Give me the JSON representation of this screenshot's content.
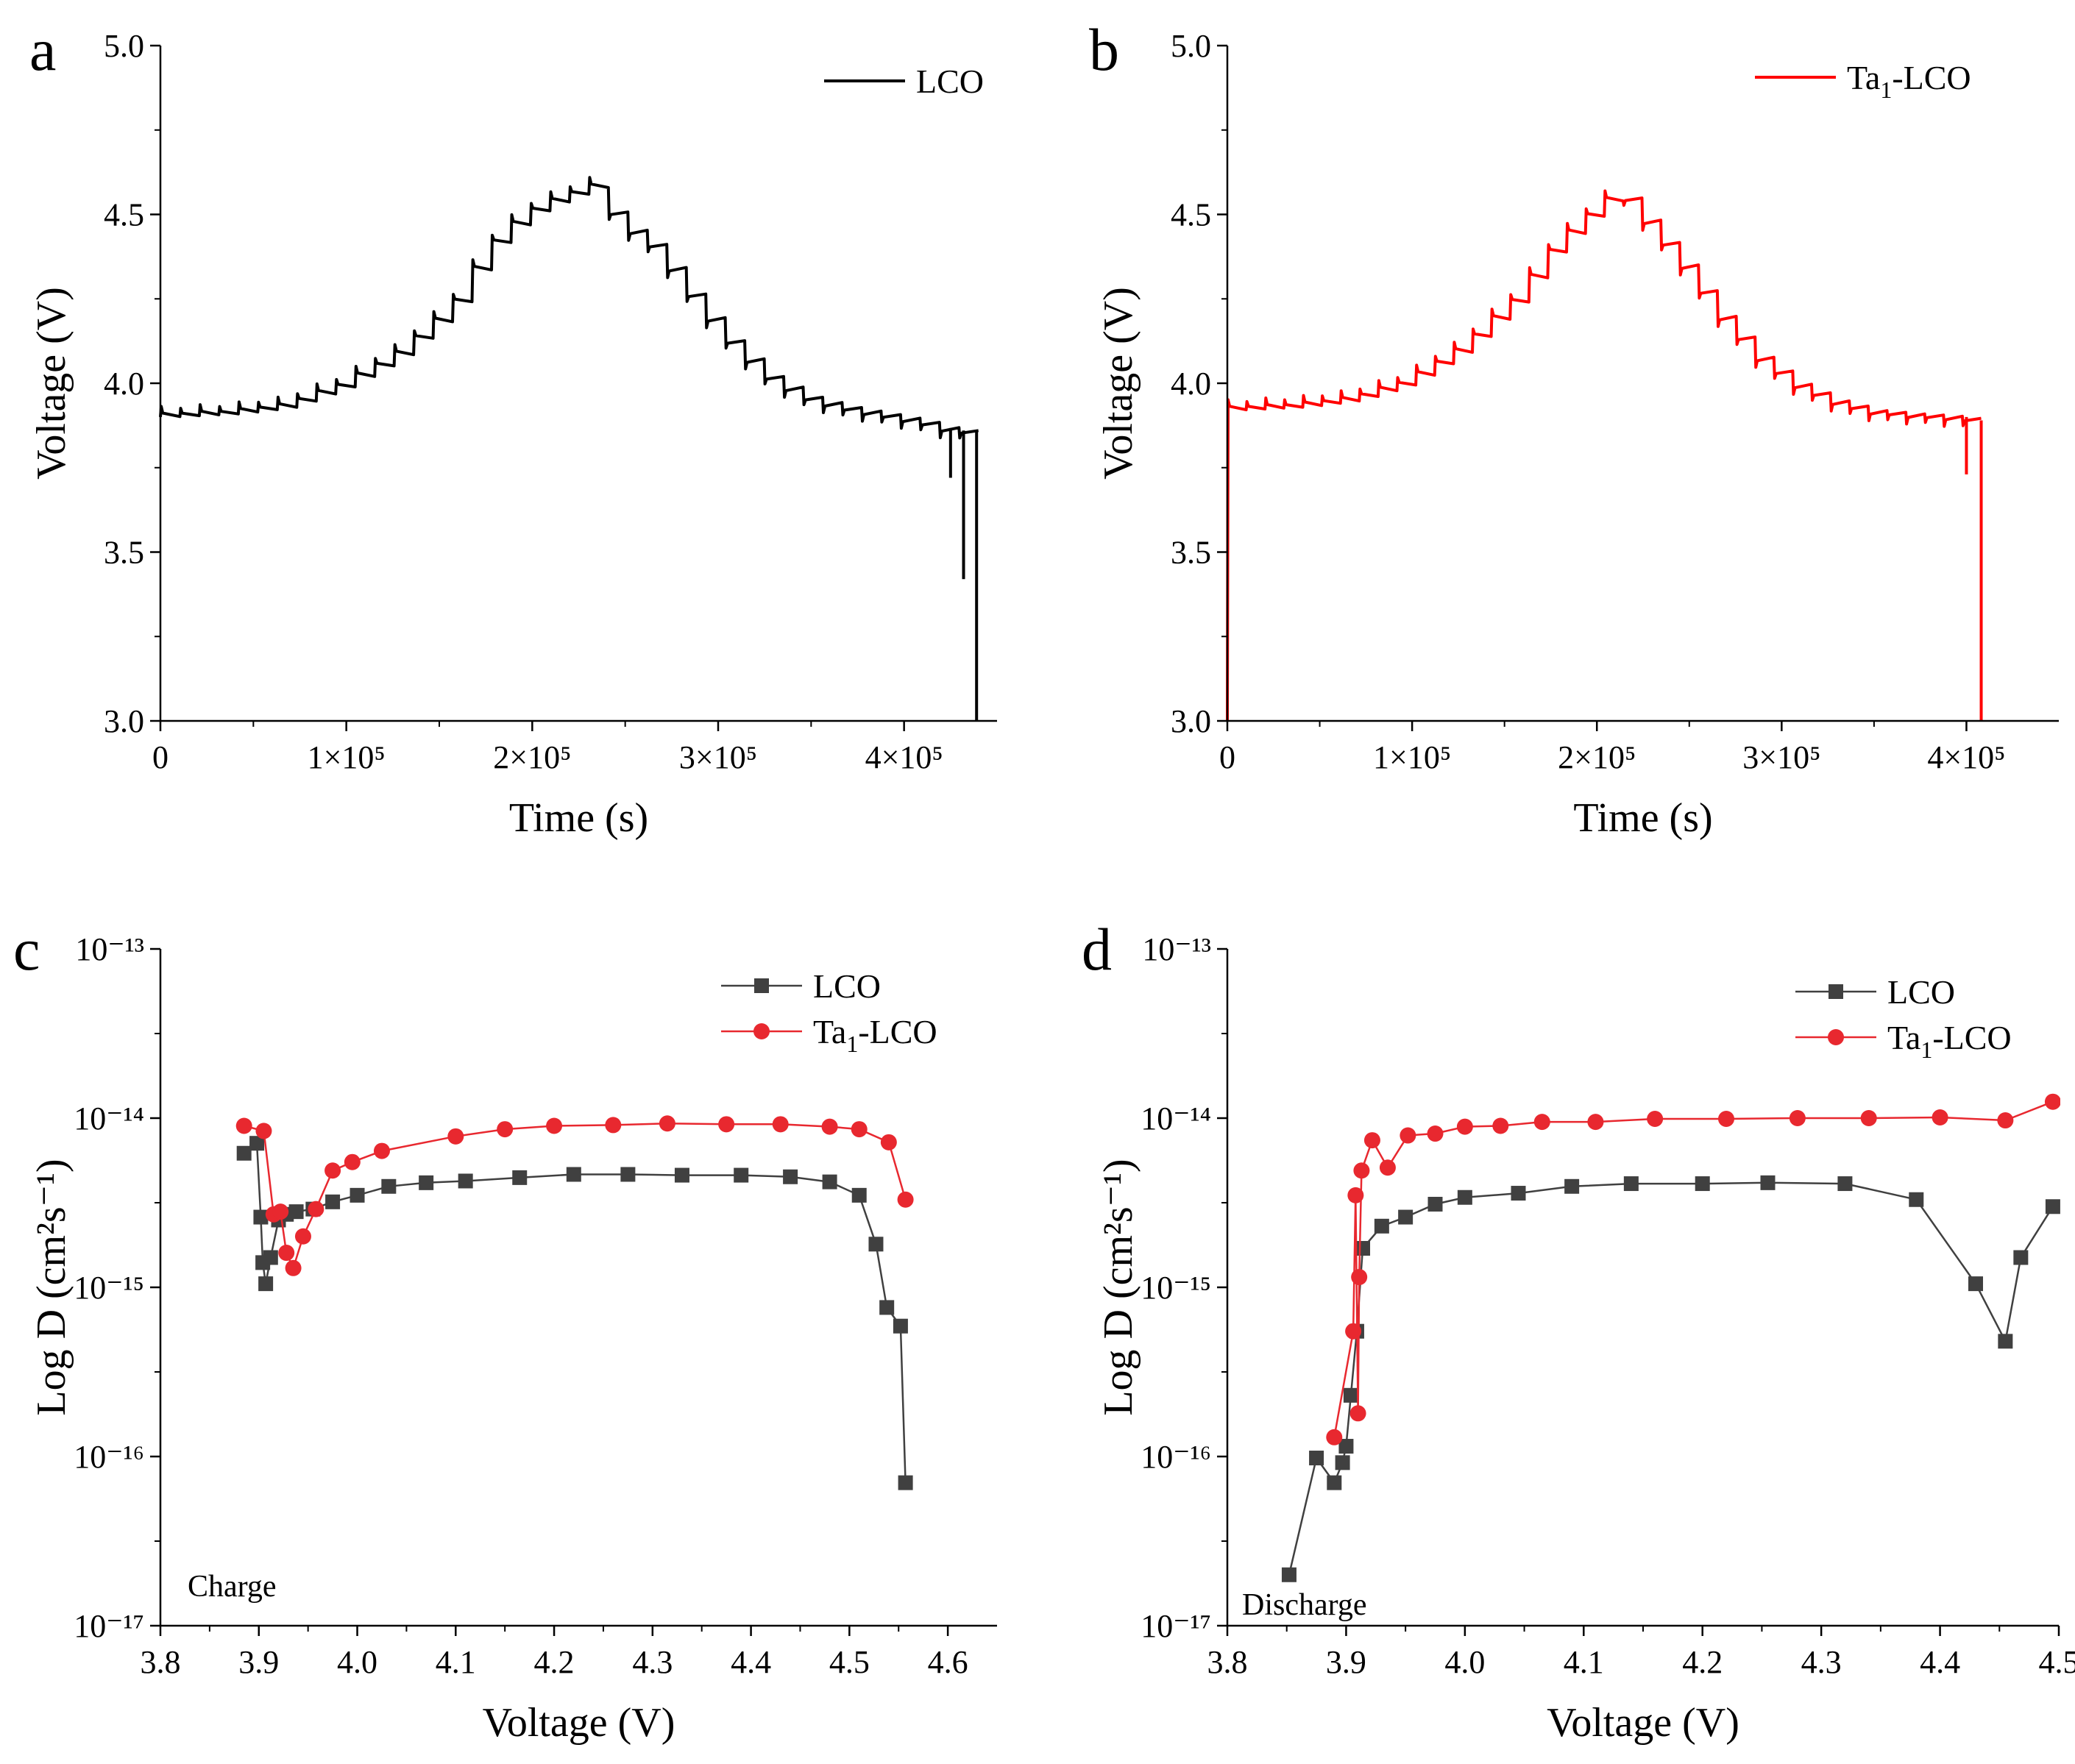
{
  "chart_data": [
    {
      "panel": "a",
      "type": "line",
      "xlabel": "Time (s)",
      "ylabel": "Voltage (V)",
      "xlim": [
        0,
        450000
      ],
      "ylim": [
        3.0,
        5.0
      ],
      "x_ticks": [
        0,
        100000,
        200000,
        300000,
        400000
      ],
      "x_tick_labels": [
        "0",
        "1×10⁵",
        "2×10⁵",
        "3×10⁵",
        "4×10⁵"
      ],
      "y_ticks": [
        3.0,
        3.5,
        4.0,
        4.5,
        5.0
      ],
      "y_tick_labels": [
        "3.0",
        "3.5",
        "4.0",
        "4.5",
        "5.0"
      ],
      "legend": "top-right",
      "series": [
        {
          "name": "LCO",
          "color": "#000000",
          "style": "gitt",
          "pulses": 42,
          "t_start": 0,
          "t_end": 440000,
          "t_peak": 236000,
          "start_v": 3.9,
          "plateau": [
            [
              0,
              3.9
            ],
            [
              40000,
              3.91
            ],
            [
              70000,
              3.93
            ],
            [
              100000,
              3.99
            ],
            [
              130000,
              4.08
            ],
            [
              160000,
              4.22
            ],
            [
              180000,
              4.4
            ],
            [
              200000,
              4.5
            ],
            [
              220000,
              4.55
            ],
            [
              236000,
              4.58
            ],
            [
              250000,
              4.48
            ],
            [
              270000,
              4.4
            ],
            [
              290000,
              4.25
            ],
            [
              310000,
              4.12
            ],
            [
              330000,
              4.02
            ],
            [
              350000,
              3.96
            ],
            [
              370000,
              3.93
            ],
            [
              390000,
              3.91
            ],
            [
              410000,
              3.89
            ],
            [
              430000,
              3.86
            ],
            [
              440000,
              3.86
            ]
          ],
          "spikes": [
            [
              425000,
              3.72
            ],
            [
              432000,
              3.42
            ],
            [
              439000,
              3.0
            ]
          ]
        }
      ]
    },
    {
      "panel": "b",
      "type": "line",
      "xlabel": "Time (s)",
      "ylabel": "Voltage (V)",
      "xlim": [
        0,
        450000
      ],
      "ylim": [
        3.0,
        5.0
      ],
      "x_ticks": [
        0,
        100000,
        200000,
        300000,
        400000
      ],
      "x_tick_labels": [
        "0",
        "1×10⁵",
        "2×10⁵",
        "3×10⁵",
        "4×10⁵"
      ],
      "y_ticks": [
        3.0,
        3.5,
        4.0,
        4.5,
        5.0
      ],
      "y_tick_labels": [
        "3.0",
        "3.5",
        "4.0",
        "4.5",
        "5.0"
      ],
      "legend": "top-right",
      "series": [
        {
          "name": "Ta",
          "name_sub": "1",
          "name_suffix": "-LCO",
          "color": "#ff0000",
          "style": "gitt",
          "pulses": 40,
          "t_start": 0,
          "t_end": 408000,
          "t_peak": 216000,
          "start_v": 3.0,
          "plateau": [
            [
              0,
              3.92
            ],
            [
              40000,
              3.93
            ],
            [
              70000,
              3.95
            ],
            [
              100000,
              4.0
            ],
            [
              130000,
              4.1
            ],
            [
              160000,
              4.25
            ],
            [
              180000,
              4.4
            ],
            [
              200000,
              4.5
            ],
            [
              216000,
              4.57
            ],
            [
              230000,
              4.48
            ],
            [
              250000,
              4.35
            ],
            [
              270000,
              4.2
            ],
            [
              290000,
              4.08
            ],
            [
              310000,
              4.0
            ],
            [
              330000,
              3.95
            ],
            [
              350000,
              3.92
            ],
            [
              370000,
              3.91
            ],
            [
              400000,
              3.9
            ],
            [
              408000,
              3.89
            ]
          ],
          "spikes": [
            [
              400000,
              3.73
            ],
            [
              408000,
              3.0
            ]
          ]
        }
      ]
    },
    {
      "panel": "c",
      "type": "line",
      "scale_y": "log",
      "xlabel": "Voltage (V)",
      "ylabel": "Log D (cm²s⁻¹)",
      "xlim": [
        3.8,
        4.65
      ],
      "ylim": [
        1e-17,
        1e-13
      ],
      "x_ticks": [
        3.8,
        3.9,
        4.0,
        4.1,
        4.2,
        4.3,
        4.4,
        4.5,
        4.6
      ],
      "x_tick_labels": [
        "3.8",
        "3.9",
        "4.0",
        "4.1",
        "4.2",
        "4.3",
        "4.4",
        "4.5",
        "4.6"
      ],
      "y_ticks": [
        1e-17,
        1e-16,
        1e-15,
        1e-14,
        1e-13
      ],
      "y_tick_labels": [
        "10⁻¹⁷",
        "10⁻¹⁶",
        "10⁻¹⁵",
        "10⁻¹⁴",
        "10⁻¹³"
      ],
      "annotation": "Charge",
      "legend": "top-right",
      "series": [
        {
          "name": "LCO",
          "color": "#404040",
          "marker": "square",
          "x": [
            3.885,
            3.898,
            3.902,
            3.904,
            3.907,
            3.912,
            3.92,
            3.928,
            3.938,
            3.955,
            3.975,
            4.0,
            4.032,
            4.07,
            4.11,
            4.165,
            4.22,
            4.275,
            4.33,
            4.39,
            4.44,
            4.48,
            4.51,
            4.527,
            4.538,
            4.552,
            4.557
          ],
          "y": [
            6.2e-15,
            7.1e-15,
            2.6e-15,
            1.4e-15,
            1.05e-15,
            1.5e-15,
            2.5e-15,
            2.7e-15,
            2.8e-15,
            2.9e-15,
            3.2e-15,
            3.5e-15,
            3.95e-15,
            4.15e-15,
            4.25e-15,
            4.45e-15,
            4.65e-15,
            4.65e-15,
            4.6e-15,
            4.6e-15,
            4.5e-15,
            4.2e-15,
            3.5e-15,
            1.8e-15,
            7.6e-16,
            5.9e-16,
            7e-17
          ]
        },
        {
          "name": "Ta",
          "name_sub": "1",
          "name_suffix": "-LCO",
          "color": "#e8282f",
          "marker": "circle",
          "x": [
            3.885,
            3.905,
            3.915,
            3.922,
            3.928,
            3.935,
            3.945,
            3.958,
            3.975,
            3.995,
            4.025,
            4.1,
            4.15,
            4.2,
            4.26,
            4.315,
            4.375,
            4.43,
            4.48,
            4.51,
            4.54,
            4.557
          ],
          "y": [
            9e-15,
            8.4e-15,
            2.7e-15,
            2.8e-15,
            1.6e-15,
            1.3e-15,
            2e-15,
            2.9e-15,
            4.9e-15,
            5.5e-15,
            6.4e-15,
            7.8e-15,
            8.6e-15,
            9e-15,
            9.1e-15,
            9.3e-15,
            9.2e-15,
            9.2e-15,
            8.9e-15,
            8.6e-15,
            7.2e-15,
            3.3e-15
          ]
        }
      ]
    },
    {
      "panel": "d",
      "type": "line",
      "scale_y": "log",
      "xlabel": "Voltage (V)",
      "ylabel": "Log D (cm²s⁻¹)",
      "xlim": [
        3.8,
        4.5
      ],
      "ylim": [
        1e-17,
        1e-13
      ],
      "x_ticks": [
        3.8,
        3.9,
        4.0,
        4.1,
        4.2,
        4.3,
        4.4,
        4.5
      ],
      "x_tick_labels": [
        "3.8",
        "3.9",
        "4.0",
        "4.1",
        "4.2",
        "4.3",
        "4.4",
        "4.5"
      ],
      "y_ticks": [
        1e-17,
        1e-16,
        1e-15,
        1e-14,
        1e-13
      ],
      "y_tick_labels": [
        "10⁻¹⁷",
        "10⁻¹⁶",
        "10⁻¹⁵",
        "10⁻¹⁴",
        "10⁻¹³"
      ],
      "annotation": "Discharge",
      "legend": "top-right",
      "series": [
        {
          "name": "LCO",
          "color": "#404040",
          "marker": "square",
          "x": [
            3.852,
            3.875,
            3.89,
            3.897,
            3.9,
            3.904,
            3.909,
            3.914,
            3.93,
            3.95,
            3.975,
            4.0,
            4.045,
            4.09,
            4.14,
            4.2,
            4.255,
            4.32,
            4.38,
            4.43,
            4.455,
            4.468,
            4.495
          ],
          "y": [
            2e-17,
            9.8e-17,
            7e-17,
            9.2e-17,
            1.15e-16,
            2.3e-16,
            5.5e-16,
            1.7e-15,
            2.3e-15,
            2.6e-15,
            3.1e-15,
            3.4e-15,
            3.6e-15,
            3.95e-15,
            4.1e-15,
            4.1e-15,
            4.15e-15,
            4.1e-15,
            3.3e-15,
            1.05e-15,
            4.8e-16,
            1.5e-15,
            3e-15
          ]
        },
        {
          "name": "Ta",
          "name_sub": "1",
          "name_suffix": "-LCO",
          "color": "#e8282f",
          "marker": "circle",
          "x": [
            3.89,
            3.906,
            3.908,
            3.91,
            3.911,
            3.913,
            3.922,
            3.935,
            3.952,
            3.975,
            4.0,
            4.03,
            4.065,
            4.11,
            4.16,
            4.22,
            4.28,
            4.34,
            4.4,
            4.455,
            4.495
          ],
          "y": [
            1.3e-16,
            5.5e-16,
            3.5e-15,
            1.8e-16,
            1.15e-15,
            4.9e-15,
            7.4e-15,
            5.1e-15,
            7.9e-15,
            8.1e-15,
            8.9e-15,
            9e-15,
            9.5e-15,
            9.5e-15,
            9.9e-15,
            9.9e-15,
            1e-14,
            1e-14,
            1.01e-14,
            9.7e-15,
            1.25e-14
          ]
        }
      ]
    }
  ]
}
